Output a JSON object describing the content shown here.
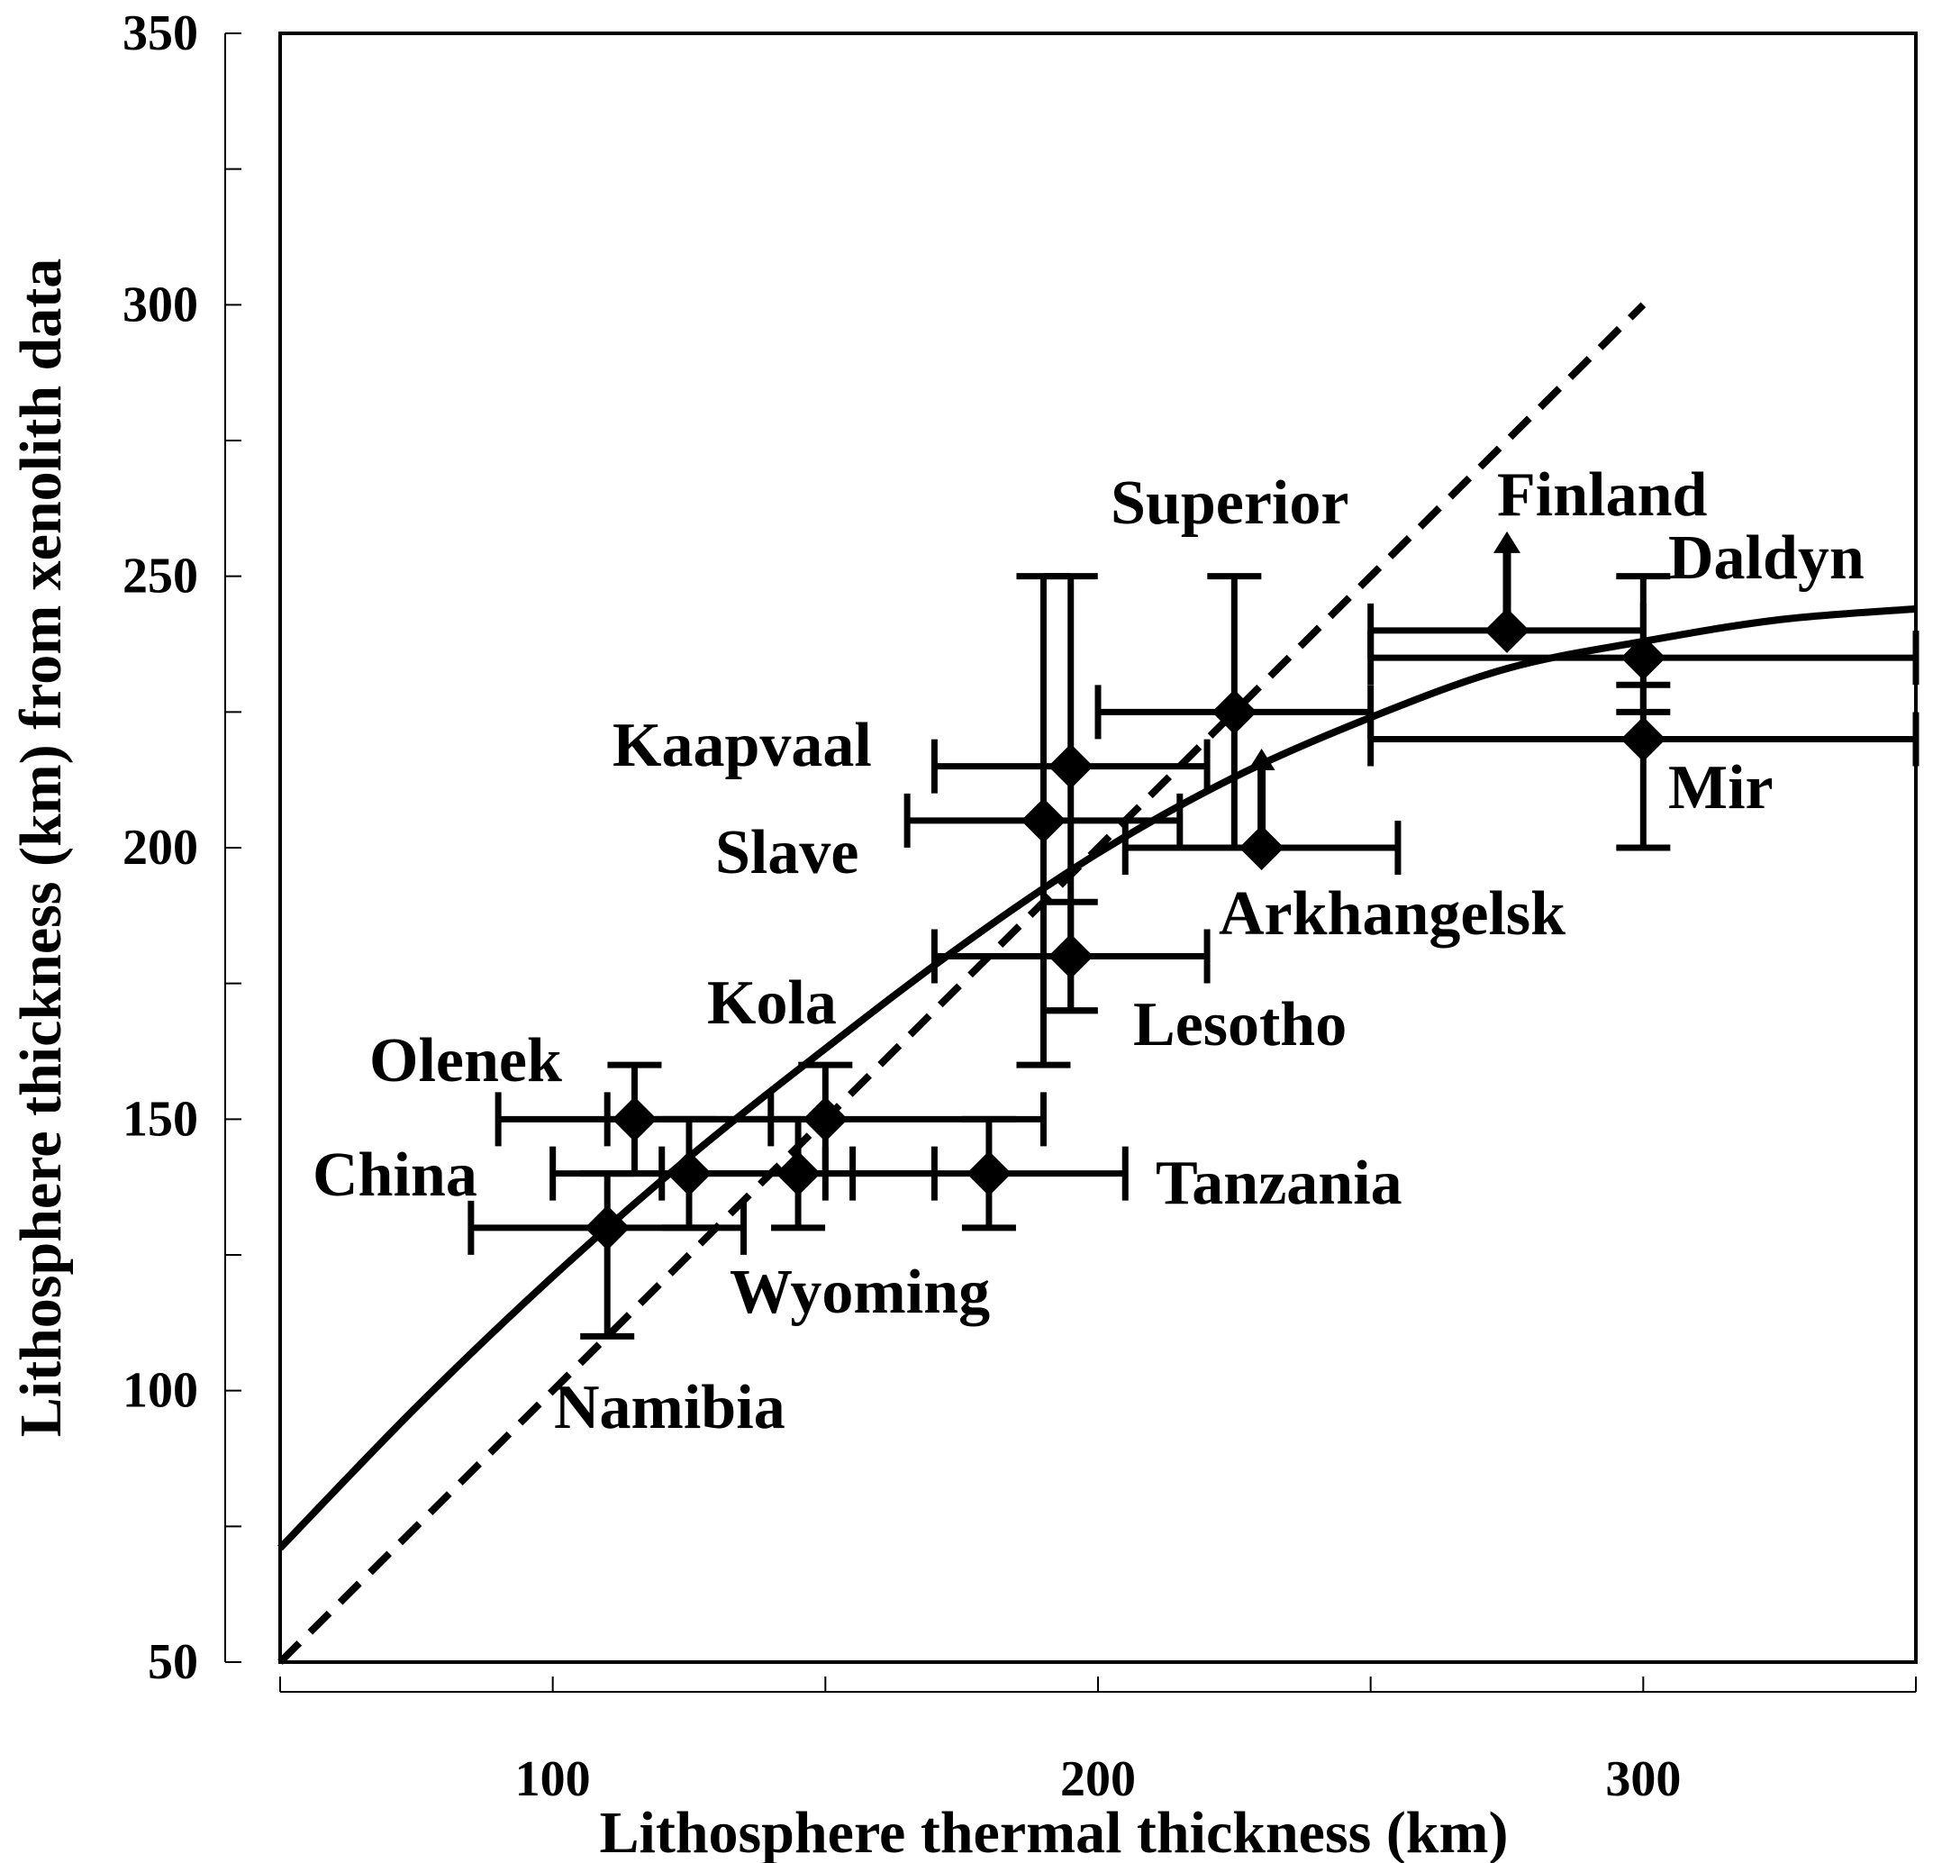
{
  "chart_data": {
    "type": "scatter",
    "xlabel": "Lithosphere thermal thickness (km)",
    "ylabel": "Lithosphere thickness (km) from xenolith data",
    "xlim": [
      50,
      350
    ],
    "ylim": [
      50,
      350
    ],
    "x_ticks": [
      100,
      200,
      300
    ],
    "x_minor_ticks": [
      50,
      150,
      250,
      350
    ],
    "y_ticks": [
      50,
      100,
      150,
      200,
      250,
      300,
      350
    ],
    "y_minor_ticks": [
      75,
      125,
      175,
      225,
      275,
      325
    ],
    "grid": false,
    "legend": "none",
    "colors": {
      "ink": "#000000",
      "background": "#ffffff"
    },
    "lines": [
      {
        "style": "dashed",
        "kind": "1:1",
        "x": [
          50,
          300
        ],
        "y": [
          50,
          300
        ]
      },
      {
        "style": "solid",
        "kind": "fit",
        "x": [
          50,
          75,
          100,
          125,
          150,
          175,
          200,
          225,
          250,
          275,
          300,
          325,
          350
        ],
        "y": [
          71,
          97,
          121,
          143,
          163,
          182,
          199,
          213,
          224,
          233,
          238,
          242,
          244
        ]
      }
    ],
    "points": [
      {
        "name": "Olenek",
        "x": 115,
        "y": 150,
        "xerr": [
          90,
          140
        ],
        "yerr": [
          140,
          160
        ]
      },
      {
        "name": "China",
        "x": 125,
        "y": 140,
        "xerr": [
          100,
          150
        ],
        "yerr": [
          130,
          150
        ]
      },
      {
        "name": "Namibia",
        "x": 110,
        "y": 130,
        "xerr": [
          85,
          135
        ],
        "yerr": [
          110,
          140
        ]
      },
      {
        "name": "Kola",
        "x": 150,
        "y": 150,
        "xerr": [
          110,
          190
        ],
        "yerr": [
          140,
          160
        ]
      },
      {
        "name": "Wyoming",
        "x": 145,
        "y": 140,
        "xerr": [
          120,
          170
        ],
        "yerr": [
          130,
          150
        ]
      },
      {
        "name": "Tanzania",
        "x": 180,
        "y": 140,
        "xerr": [
          155,
          205
        ],
        "yerr": [
          130,
          150
        ]
      },
      {
        "name": "Slave",
        "x": 190,
        "y": 205,
        "xerr": [
          165,
          215
        ],
        "yerr": [
          160,
          250
        ]
      },
      {
        "name": "Kaapvaal",
        "x": 195,
        "y": 215,
        "xerr": [
          170,
          220
        ],
        "yerr": [
          170,
          250
        ]
      },
      {
        "name": "Lesotho",
        "x": 195,
        "y": 180,
        "xerr": [
          170,
          220
        ],
        "yerr": [
          170,
          190
        ]
      },
      {
        "name": "Superior",
        "x": 225,
        "y": 225,
        "xerr": [
          200,
          250
        ],
        "yerr": [
          200,
          250
        ]
      },
      {
        "name": "Arkhangelsk",
        "x": 230,
        "y": 200,
        "xerr": [
          205,
          255
        ],
        "yerr": null,
        "arrow_up": true
      },
      {
        "name": "Finland",
        "x": 275,
        "y": 240,
        "xerr": [
          250,
          300
        ],
        "yerr": null,
        "arrow_up": true
      },
      {
        "name": "Daldyn",
        "x": 300,
        "y": 235,
        "xerr": [
          250,
          350
        ],
        "yerr": [
          225,
          250
        ]
      },
      {
        "name": "Mir",
        "x": 300,
        "y": 220,
        "xerr": [
          250,
          350
        ],
        "yerr": [
          200,
          230
        ]
      }
    ]
  }
}
